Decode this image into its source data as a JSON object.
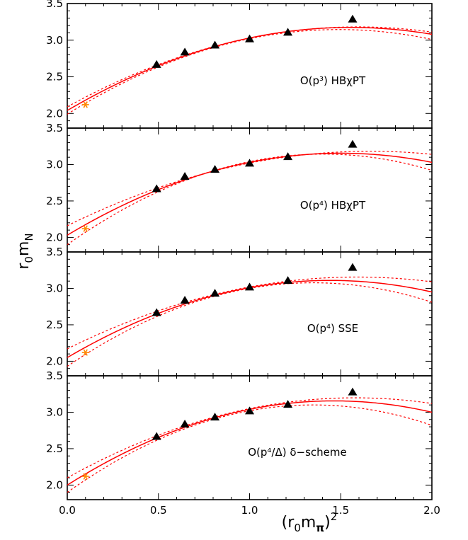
{
  "chart_data": [
    {
      "type": "line",
      "panel_label": "O(p³) HBχPT",
      "xlim": [
        0.0,
        2.0
      ],
      "ylim": [
        1.8,
        3.5
      ],
      "yticks": [
        "2.0",
        "2.5",
        "3.0",
        "3.5"
      ],
      "lattice_points": {
        "marker": "triangle",
        "color": "#000000",
        "x": [
          0.49,
          0.645,
          0.81,
          1.0,
          1.21,
          1.565
        ],
        "y": [
          2.67,
          2.84,
          2.935,
          3.02,
          3.11,
          3.29
        ]
      },
      "physical_point": {
        "marker": "asterisk",
        "color": "#ff8800",
        "x": 0.1,
        "y": 2.12
      },
      "series": [
        {
          "role": "central",
          "style": "solid",
          "color": "#ff0000",
          "coeffs": [
            2.04,
            1.46,
            -0.47
          ]
        },
        {
          "role": "band_upper",
          "style": "dashed",
          "color": "#ff0000",
          "coeffs": [
            2.09,
            1.37,
            -0.43
          ]
        },
        {
          "role": "band_lower",
          "style": "dashed",
          "color": "#ff0000",
          "coeffs": [
            1.99,
            1.55,
            -0.52
          ]
        }
      ]
    },
    {
      "type": "line",
      "panel_label": "O(p⁴) HBχPT",
      "xlim": [
        0.0,
        2.0
      ],
      "ylim": [
        1.8,
        3.5
      ],
      "yticks": [
        "2.0",
        "2.5",
        "3.0",
        "3.5"
      ],
      "lattice_points": {
        "marker": "triangle",
        "color": "#000000",
        "x": [
          0.49,
          0.645,
          0.81,
          1.0,
          1.21,
          1.565
        ],
        "y": [
          2.67,
          2.84,
          2.935,
          3.02,
          3.11,
          3.28
        ]
      },
      "physical_point": {
        "marker": "asterisk",
        "color": "#ff8800",
        "x": 0.1,
        "y": 2.12
      },
      "series": [
        {
          "role": "central",
          "style": "solid",
          "color": "#ff0000",
          "coeffs": [
            2.03,
            1.5,
            -0.5
          ]
        },
        {
          "role": "band_upper",
          "style": "dashed",
          "color": "#ff0000",
          "coeffs": [
            2.16,
            1.23,
            -0.37
          ]
        },
        {
          "role": "band_lower",
          "style": "dashed",
          "color": "#ff0000",
          "coeffs": [
            1.9,
            1.77,
            -0.63
          ]
        }
      ]
    },
    {
      "type": "line",
      "panel_label": "O(p⁴) SSE",
      "xlim": [
        0.0,
        2.0
      ],
      "ylim": [
        1.8,
        3.5
      ],
      "yticks": [
        "2.0",
        "2.5",
        "3.0",
        "3.5"
      ],
      "lattice_points": {
        "marker": "triangle",
        "color": "#000000",
        "x": [
          0.49,
          0.645,
          0.81,
          1.0,
          1.21,
          1.565
        ],
        "y": [
          2.67,
          2.84,
          2.935,
          3.02,
          3.11,
          3.29
        ]
      },
      "physical_point": {
        "marker": "asterisk",
        "color": "#ff8800",
        "x": 0.1,
        "y": 2.12
      },
      "series": [
        {
          "role": "central",
          "style": "solid",
          "color": "#ff0000",
          "coeffs": [
            2.05,
            1.47,
            -0.51
          ]
        },
        {
          "role": "band_upper",
          "style": "dashed",
          "color": "#ff0000",
          "coeffs": [
            2.17,
            1.24,
            -0.39
          ]
        },
        {
          "role": "band_lower",
          "style": "dashed",
          "color": "#ff0000",
          "coeffs": [
            1.93,
            1.7,
            -0.63
          ]
        }
      ]
    },
    {
      "type": "line",
      "panel_label": "O(p⁴/Δ) δ−scheme",
      "xlim": [
        0.0,
        2.0
      ],
      "ylim": [
        1.8,
        3.5
      ],
      "yticks": [
        "2.0",
        "2.5",
        "3.0",
        "3.5"
      ],
      "xticks": [
        "0.0",
        "0.5",
        "1.0",
        "1.5",
        "2.0"
      ],
      "lattice_points": {
        "marker": "triangle",
        "color": "#000000",
        "x": [
          0.49,
          0.645,
          0.81,
          1.0,
          1.21,
          1.565
        ],
        "y": [
          2.67,
          2.84,
          2.935,
          3.02,
          3.11,
          3.28
        ]
      },
      "physical_point": {
        "marker": "asterisk",
        "color": "#ff8800",
        "x": 0.1,
        "y": 2.12
      },
      "series": [
        {
          "role": "central",
          "style": "solid",
          "color": "#ff0000",
          "coeffs": [
            2.0,
            1.58,
            -0.54
          ]
        },
        {
          "role": "band_upper",
          "style": "dashed",
          "color": "#ff0000",
          "coeffs": [
            2.1,
            1.39,
            -0.44
          ]
        },
        {
          "role": "band_lower",
          "style": "dashed",
          "color": "#ff0000",
          "coeffs": [
            1.9,
            1.78,
            -0.66
          ]
        }
      ]
    }
  ],
  "axes": {
    "xlabel": "(r₀m_π)²",
    "ylabel": "r₀m_N"
  }
}
